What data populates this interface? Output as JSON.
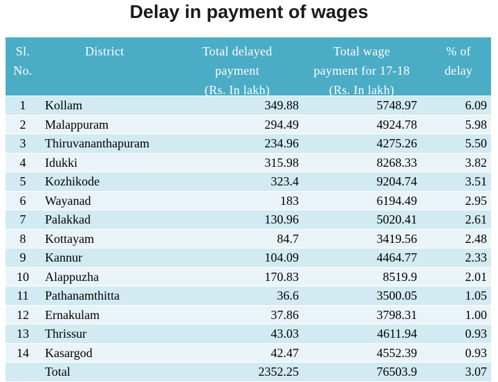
{
  "title": "Delay in payment of wages",
  "header": {
    "sl": [
      "Sl.",
      "No."
    ],
    "district": [
      "District"
    ],
    "delayed": [
      "Total delayed",
      "payment",
      "(Rs. In lakh)"
    ],
    "total": [
      "Total wage",
      "payment for 17-18",
      "(Rs. In lakh)"
    ],
    "pct": [
      "% of",
      "delay"
    ]
  },
  "rows": [
    {
      "sl": "1",
      "district": "Kollam",
      "delayed": "349.88",
      "total": "5748.97",
      "pct": "6.09"
    },
    {
      "sl": "2",
      "district": "Malappuram",
      "delayed": "294.49",
      "total": "4924.78",
      "pct": "5.98"
    },
    {
      "sl": "3",
      "district": "Thiruvananthapuram",
      "delayed": "234.96",
      "total": "4275.26",
      "pct": "5.50"
    },
    {
      "sl": "4",
      "district": "Idukki",
      "delayed": "315.98",
      "total": "8268.33",
      "pct": "3.82"
    },
    {
      "sl": "5",
      "district": "Kozhikode",
      "delayed": "323.4",
      "total": "9204.74",
      "pct": "3.51"
    },
    {
      "sl": "6",
      "district": "Wayanad",
      "delayed": "183",
      "total": "6194.49",
      "pct": "2.95"
    },
    {
      "sl": "7",
      "district": "Palakkad",
      "delayed": "130.96",
      "total": "5020.41",
      "pct": "2.61"
    },
    {
      "sl": "8",
      "district": "Kottayam",
      "delayed": "84.7",
      "total": "3419.56",
      "pct": "2.48"
    },
    {
      "sl": "9",
      "district": "Kannur",
      "delayed": "104.09",
      "total": "4464.77",
      "pct": "2.33"
    },
    {
      "sl": "10",
      "district": "Alappuzha",
      "delayed": "170.83",
      "total": "8519.9",
      "pct": "2.01"
    },
    {
      "sl": "11",
      "district": "Pathanamthitta",
      "delayed": "36.6",
      "total": "3500.05",
      "pct": "1.05"
    },
    {
      "sl": "12",
      "district": "Ernakulam",
      "delayed": "37.86",
      "total": "3798.31",
      "pct": "1.00"
    },
    {
      "sl": "13",
      "district": "Thrissur",
      "delayed": "43.03",
      "total": "4611.94",
      "pct": "0.93"
    },
    {
      "sl": "14",
      "district": "Kasargod",
      "delayed": "42.47",
      "total": "4552.39",
      "pct": "0.93"
    },
    {
      "sl": "",
      "district": "Total",
      "delayed": "2352.25",
      "total": "76503.9",
      "pct": "3.07"
    }
  ]
}
